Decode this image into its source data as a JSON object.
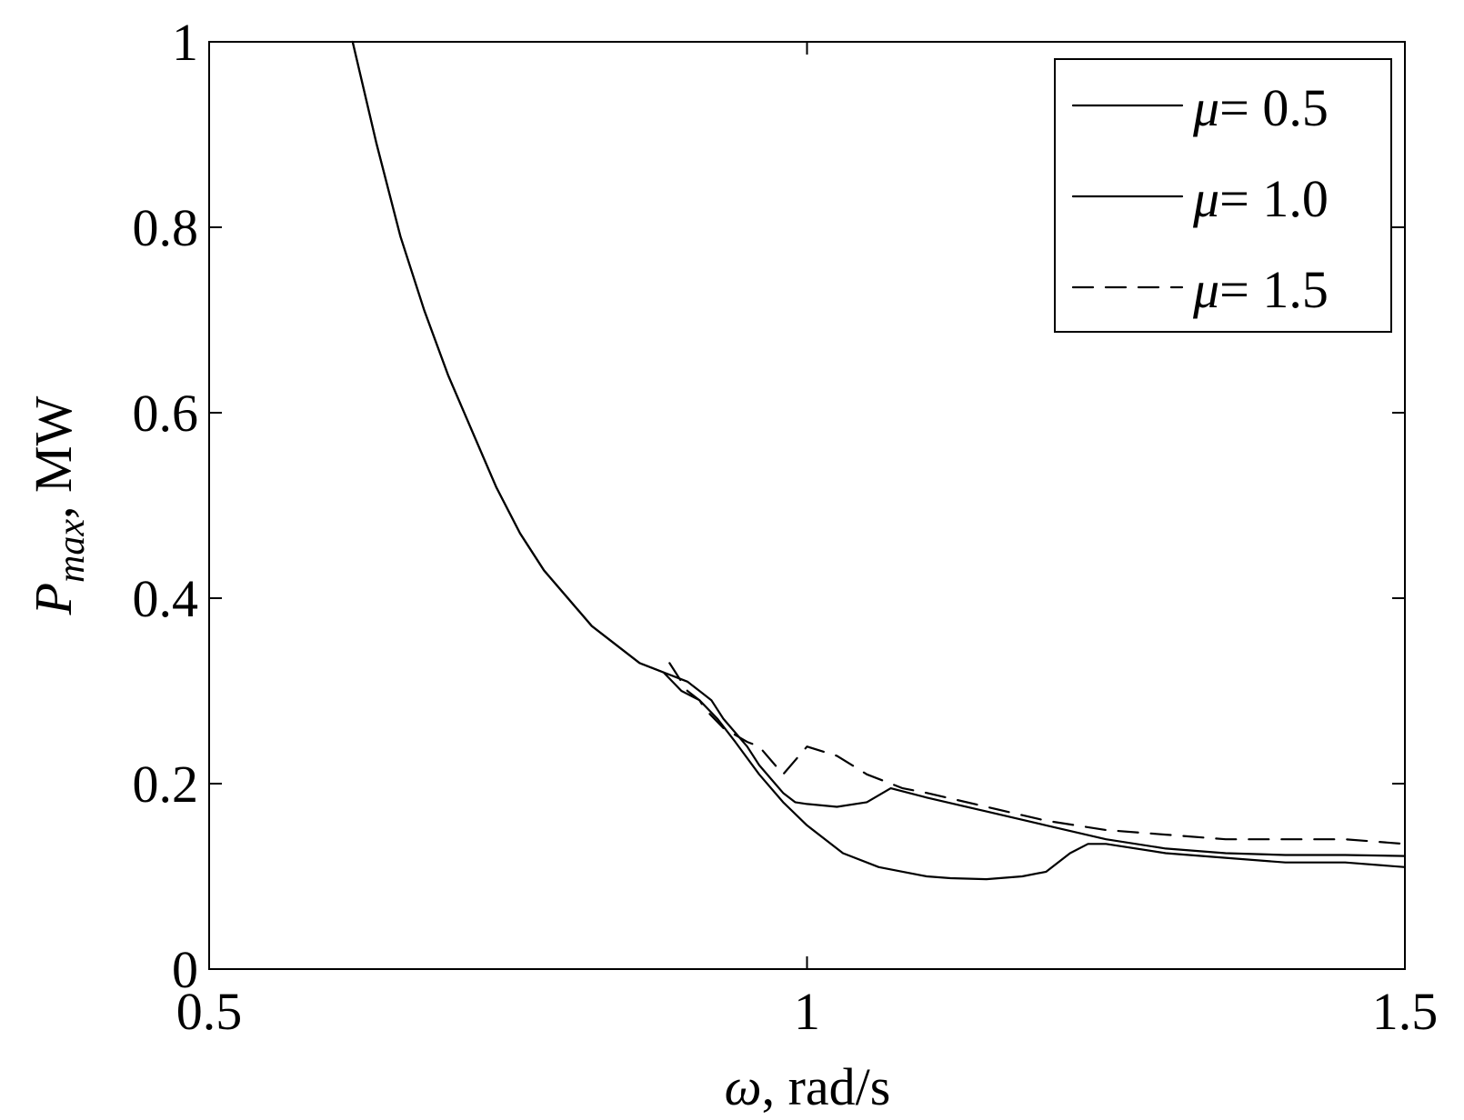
{
  "chart_data": {
    "type": "line",
    "xlabel_symbol": "ω",
    "xlabel_unit": ", rad/s",
    "ylabel_symbol": "P",
    "ylabel_sub": "max",
    "ylabel_unit": ", MW",
    "xlim": [
      0.5,
      1.5
    ],
    "ylim": [
      0,
      1
    ],
    "xticks": [
      0.5,
      1,
      1.5
    ],
    "xtick_labels": [
      "0.5",
      "1",
      "1.5"
    ],
    "yticks": [
      0,
      0.2,
      0.4,
      0.6,
      0.8,
      1
    ],
    "ytick_labels": [
      "0",
      "0.2",
      "0.4",
      "0.6",
      "0.8",
      "1"
    ],
    "grid": false,
    "legend_position": "top-right",
    "series": [
      {
        "name": "μ = 0.5",
        "legend_symbol": "μ",
        "legend_value": "= 0.5",
        "dash": "",
        "x": [
          0.62,
          0.64,
          0.66,
          0.68,
          0.7,
          0.72,
          0.74,
          0.76,
          0.78,
          0.8,
          0.82,
          0.84,
          0.86,
          0.88,
          0.895,
          0.91,
          0.925,
          0.94,
          0.96,
          0.98,
          1.0,
          1.03,
          1.06,
          1.08,
          1.1,
          1.12,
          1.15,
          1.18,
          1.2,
          1.22,
          1.235,
          1.25,
          1.3,
          1.35,
          1.4,
          1.45,
          1.5
        ],
        "y": [
          1.0,
          0.89,
          0.79,
          0.71,
          0.64,
          0.58,
          0.52,
          0.47,
          0.43,
          0.4,
          0.37,
          0.35,
          0.33,
          0.32,
          0.3,
          0.29,
          0.27,
          0.245,
          0.21,
          0.18,
          0.155,
          0.125,
          0.11,
          0.105,
          0.1,
          0.098,
          0.097,
          0.1,
          0.105,
          0.125,
          0.135,
          0.135,
          0.125,
          0.12,
          0.115,
          0.115,
          0.11
        ]
      },
      {
        "name": "μ = 1.0",
        "legend_symbol": "μ",
        "legend_value": "= 1.0",
        "dash": "",
        "x": [
          0.62,
          0.64,
          0.66,
          0.68,
          0.7,
          0.72,
          0.74,
          0.76,
          0.78,
          0.8,
          0.82,
          0.84,
          0.86,
          0.88,
          0.89,
          0.9,
          0.91,
          0.92,
          0.93,
          0.94,
          0.95,
          0.96,
          0.97,
          0.98,
          0.99,
          1.0,
          1.025,
          1.05,
          1.07,
          1.1,
          1.15,
          1.2,
          1.25,
          1.3,
          1.35,
          1.4,
          1.45,
          1.5
        ],
        "y": [
          1.0,
          0.89,
          0.79,
          0.71,
          0.64,
          0.58,
          0.52,
          0.47,
          0.43,
          0.4,
          0.37,
          0.35,
          0.33,
          0.32,
          0.315,
          0.31,
          0.3,
          0.29,
          0.27,
          0.255,
          0.24,
          0.22,
          0.205,
          0.19,
          0.18,
          0.178,
          0.175,
          0.18,
          0.195,
          0.185,
          0.17,
          0.155,
          0.14,
          0.13,
          0.125,
          0.123,
          0.123,
          0.122
        ]
      },
      {
        "name": "μ = 1.5",
        "legend_symbol": "μ",
        "legend_value": "= 1.5",
        "dash": "22,14",
        "x": [
          0.885,
          0.89,
          0.895,
          0.9,
          0.91,
          0.915,
          0.93,
          0.95,
          0.96,
          0.98,
          1.0,
          1.025,
          1.05,
          1.08,
          1.1,
          1.15,
          1.2,
          1.25,
          1.3,
          1.35,
          1.4,
          1.45,
          1.5
        ],
        "y": [
          0.33,
          0.32,
          0.31,
          0.3,
          0.29,
          0.28,
          0.26,
          0.245,
          0.24,
          0.21,
          0.24,
          0.23,
          0.21,
          0.195,
          0.19,
          0.175,
          0.16,
          0.15,
          0.145,
          0.14,
          0.14,
          0.14,
          0.135
        ]
      }
    ]
  }
}
